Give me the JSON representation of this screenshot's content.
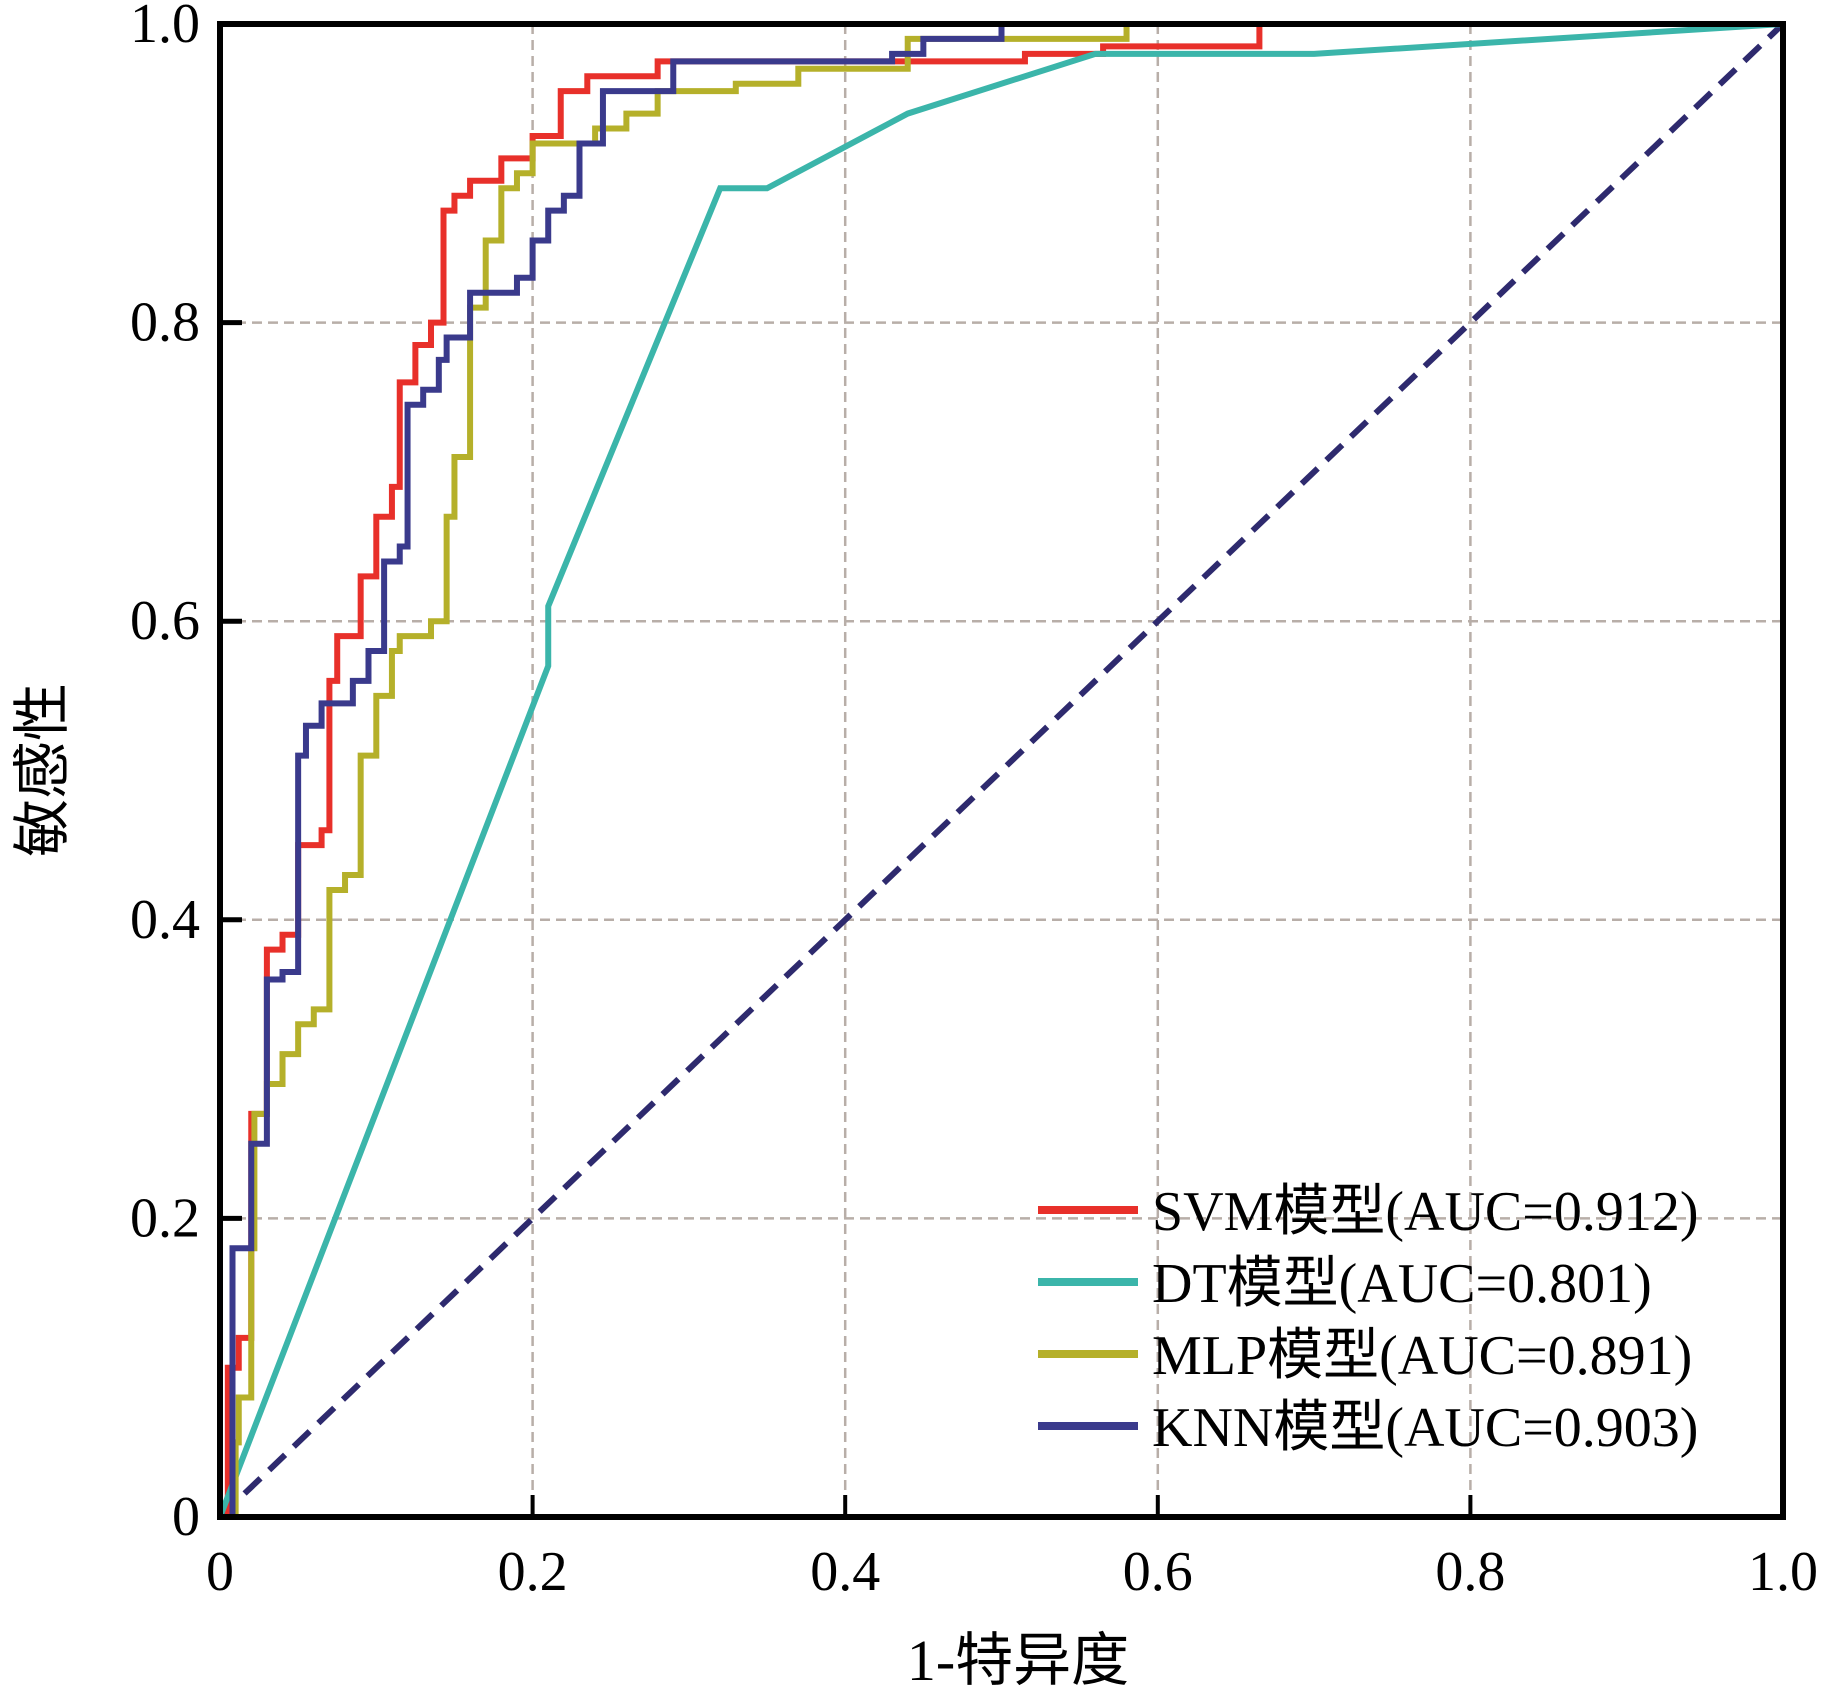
{
  "chart_data": {
    "type": "line",
    "xlabel": "1-特异度",
    "ylabel": "敏感性",
    "xlim": [
      0,
      1
    ],
    "ylim": [
      0,
      1
    ],
    "xticks": [
      "0",
      "0.2",
      "0.4",
      "0.6",
      "0.8",
      "1.0"
    ],
    "yticks": [
      "0",
      "0.2",
      "0.4",
      "0.6",
      "0.8",
      "1.0"
    ],
    "xtick_values": [
      0,
      0.2,
      0.4,
      0.6,
      0.8,
      1.0
    ],
    "ytick_values": [
      0,
      0.2,
      0.4,
      0.6,
      0.8,
      1.0
    ],
    "grid": true,
    "legend_position": "bottom-right",
    "series": [
      {
        "name": "SVM模型(AUC=0.912)",
        "color": "#e8302a",
        "style": "step",
        "points": [
          [
            0,
            0
          ],
          [
            0.005,
            0.1
          ],
          [
            0.012,
            0.12
          ],
          [
            0.02,
            0.27
          ],
          [
            0.03,
            0.38
          ],
          [
            0.04,
            0.39
          ],
          [
            0.05,
            0.45
          ],
          [
            0.065,
            0.46
          ],
          [
            0.07,
            0.56
          ],
          [
            0.075,
            0.59
          ],
          [
            0.09,
            0.63
          ],
          [
            0.1,
            0.67
          ],
          [
            0.11,
            0.69
          ],
          [
            0.115,
            0.76
          ],
          [
            0.125,
            0.785
          ],
          [
            0.135,
            0.8
          ],
          [
            0.143,
            0.875
          ],
          [
            0.15,
            0.885
          ],
          [
            0.16,
            0.895
          ],
          [
            0.18,
            0.91
          ],
          [
            0.2,
            0.925
          ],
          [
            0.218,
            0.955
          ],
          [
            0.235,
            0.965
          ],
          [
            0.28,
            0.975
          ],
          [
            0.515,
            0.98
          ],
          [
            0.565,
            0.985
          ],
          [
            0.665,
            1.0
          ],
          [
            1,
            1
          ]
        ]
      },
      {
        "name": "DT模型(AUC=0.801)",
        "color": "#3bb5aa",
        "style": "linear",
        "points": [
          [
            0,
            0
          ],
          [
            0.21,
            0.57
          ],
          [
            0.21,
            0.61
          ],
          [
            0.32,
            0.89
          ],
          [
            0.35,
            0.89
          ],
          [
            0.44,
            0.94
          ],
          [
            0.56,
            0.98
          ],
          [
            0.7,
            0.98
          ],
          [
            1,
            1
          ]
        ]
      },
      {
        "name": "MLP模型(AUC=0.891)",
        "color": "#b5b02a",
        "style": "step",
        "points": [
          [
            0,
            0
          ],
          [
            0.01,
            0.05
          ],
          [
            0.012,
            0.08
          ],
          [
            0.02,
            0.18
          ],
          [
            0.022,
            0.27
          ],
          [
            0.03,
            0.29
          ],
          [
            0.04,
            0.31
          ],
          [
            0.05,
            0.33
          ],
          [
            0.06,
            0.34
          ],
          [
            0.07,
            0.42
          ],
          [
            0.08,
            0.43
          ],
          [
            0.09,
            0.51
          ],
          [
            0.1,
            0.55
          ],
          [
            0.11,
            0.58
          ],
          [
            0.115,
            0.59
          ],
          [
            0.135,
            0.6
          ],
          [
            0.145,
            0.67
          ],
          [
            0.15,
            0.71
          ],
          [
            0.16,
            0.81
          ],
          [
            0.17,
            0.855
          ],
          [
            0.18,
            0.89
          ],
          [
            0.19,
            0.9
          ],
          [
            0.2,
            0.92
          ],
          [
            0.24,
            0.93
          ],
          [
            0.26,
            0.94
          ],
          [
            0.28,
            0.955
          ],
          [
            0.33,
            0.96
          ],
          [
            0.37,
            0.97
          ],
          [
            0.44,
            0.99
          ],
          [
            0.58,
            1.0
          ],
          [
            1,
            1
          ]
        ]
      },
      {
        "name": "KNN模型(AUC=0.903)",
        "color": "#3a3a8c",
        "style": "step",
        "points": [
          [
            0,
            0
          ],
          [
            0.008,
            0.18
          ],
          [
            0.02,
            0.25
          ],
          [
            0.03,
            0.36
          ],
          [
            0.04,
            0.365
          ],
          [
            0.05,
            0.51
          ],
          [
            0.055,
            0.53
          ],
          [
            0.065,
            0.545
          ],
          [
            0.085,
            0.56
          ],
          [
            0.095,
            0.58
          ],
          [
            0.105,
            0.64
          ],
          [
            0.115,
            0.65
          ],
          [
            0.12,
            0.745
          ],
          [
            0.13,
            0.755
          ],
          [
            0.14,
            0.775
          ],
          [
            0.145,
            0.79
          ],
          [
            0.16,
            0.82
          ],
          [
            0.19,
            0.83
          ],
          [
            0.2,
            0.855
          ],
          [
            0.21,
            0.875
          ],
          [
            0.22,
            0.885
          ],
          [
            0.23,
            0.92
          ],
          [
            0.245,
            0.955
          ],
          [
            0.29,
            0.975
          ],
          [
            0.43,
            0.98
          ],
          [
            0.45,
            0.99
          ],
          [
            0.5,
            1.0
          ],
          [
            1,
            1
          ]
        ]
      }
    ],
    "reference_line": {
      "points": [
        [
          0,
          0
        ],
        [
          1,
          1
        ]
      ],
      "color": "#2e2a6e",
      "style": "dashed"
    }
  }
}
